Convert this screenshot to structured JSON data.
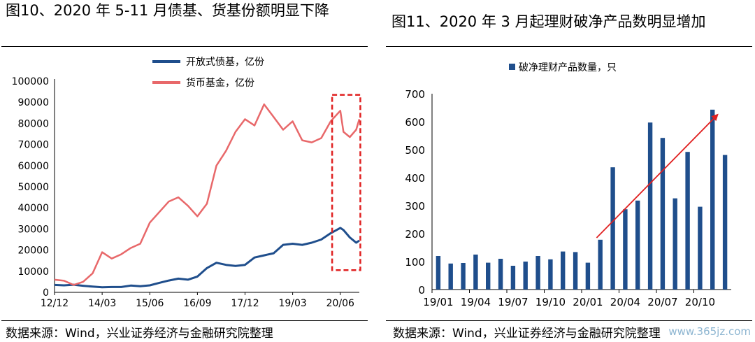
{
  "left": {
    "title": "图10、2020 年 5-11 月债基、货基份额明显下降",
    "source": "数据来源：Wind，兴业证券经济与金融研究院整理"
  },
  "right": {
    "title": "图11、2020 年 3 月起理财破净产品数明显增加",
    "source": "数据来源：Wind，兴业证券经济与金融研究院整理"
  },
  "watermark": "www.365jz.com",
  "colors": {
    "bond": "#1f4e8c",
    "money": "#e8686a",
    "bar": "#1f4e8c",
    "arrow": "#e02020",
    "highlight": "#e02020"
  },
  "chart_data": [
    {
      "type": "line",
      "title": "图10、2020 年 5-11 月债基、货基份额明显下降",
      "xlabel": "",
      "ylabel": "",
      "xticks": [
        "12/12",
        "14/03",
        "15/06",
        "16/09",
        "17/12",
        "19/03",
        "20/06"
      ],
      "ylim": [
        0,
        100000
      ],
      "yticks": [
        "0",
        "10000",
        "20000",
        "30000",
        "40000",
        "50000",
        "60000",
        "70000",
        "80000",
        "90000",
        "100000"
      ],
      "legend_position": "top-right",
      "highlight_period": "2020-05 to 2020-11",
      "series": [
        {
          "name": "开放式债基，亿份",
          "x": [
            "2012-12",
            "2013-03",
            "2013-06",
            "2013-09",
            "2013-12",
            "2014-03",
            "2014-06",
            "2014-09",
            "2014-12",
            "2015-03",
            "2015-06",
            "2015-09",
            "2015-12",
            "2016-03",
            "2016-06",
            "2016-09",
            "2016-12",
            "2017-03",
            "2017-06",
            "2017-09",
            "2017-12",
            "2018-03",
            "2018-06",
            "2018-09",
            "2018-12",
            "2019-03",
            "2019-06",
            "2019-09",
            "2019-12",
            "2020-03",
            "2020-06",
            "2020-07",
            "2020-09",
            "2020-11",
            "2020-12"
          ],
          "values": [
            3500,
            3300,
            3600,
            3100,
            2700,
            2400,
            2500,
            2500,
            3200,
            2900,
            3300,
            4500,
            5600,
            6500,
            6000,
            7500,
            11500,
            14000,
            13000,
            12500,
            13000,
            16500,
            17500,
            18500,
            22500,
            23000,
            22500,
            23500,
            25000,
            28000,
            30500,
            29500,
            26000,
            23500,
            24500
          ]
        },
        {
          "name": "货币基金，亿份",
          "x": [
            "2012-12",
            "2013-03",
            "2013-06",
            "2013-09",
            "2013-12",
            "2014-03",
            "2014-06",
            "2014-09",
            "2014-12",
            "2015-03",
            "2015-06",
            "2015-09",
            "2015-12",
            "2016-03",
            "2016-06",
            "2016-09",
            "2016-12",
            "2017-03",
            "2017-06",
            "2017-09",
            "2017-12",
            "2018-03",
            "2018-06",
            "2018-09",
            "2018-12",
            "2019-03",
            "2019-06",
            "2019-09",
            "2019-12",
            "2020-03",
            "2020-06",
            "2020-07",
            "2020-09",
            "2020-11",
            "2020-12"
          ],
          "values": [
            6000,
            5500,
            3500,
            5000,
            9000,
            19000,
            16000,
            18000,
            21000,
            23000,
            33000,
            38000,
            43000,
            45000,
            41000,
            36000,
            42000,
            60000,
            67000,
            76000,
            82000,
            79000,
            89000,
            83000,
            77000,
            81000,
            72000,
            71000,
            73000,
            81000,
            86000,
            76000,
            73500,
            77000,
            82000
          ]
        }
      ]
    },
    {
      "type": "bar",
      "title": "图11、2020 年 3 月起理财破净产品数明显增加",
      "xlabel": "",
      "ylabel": "",
      "xticks": [
        "19/01",
        "19/04",
        "19/07",
        "19/10",
        "20/01",
        "20/04",
        "20/07",
        "20/10"
      ],
      "ylim": [
        0,
        700
      ],
      "yticks": [
        "0",
        "100",
        "200",
        "300",
        "400",
        "500",
        "600",
        "700"
      ],
      "legend_position": "top-center",
      "trend_arrow": "upward",
      "categories": [
        "19/01",
        "19/02",
        "19/03",
        "19/04",
        "19/05",
        "19/06",
        "19/07",
        "19/08",
        "19/09",
        "19/10",
        "19/11",
        "19/12",
        "20/01",
        "20/02",
        "20/03",
        "20/04",
        "20/05",
        "20/06",
        "20/07",
        "20/08",
        "20/09",
        "20/10",
        "20/11",
        "20/12"
      ],
      "series": [
        {
          "name": "破净理财产品数量，只",
          "values": [
            120,
            93,
            95,
            125,
            96,
            110,
            85,
            100,
            120,
            108,
            136,
            134,
            96,
            178,
            437,
            287,
            318,
            597,
            542,
            326,
            492,
            296,
            643,
            481
          ]
        }
      ]
    }
  ]
}
